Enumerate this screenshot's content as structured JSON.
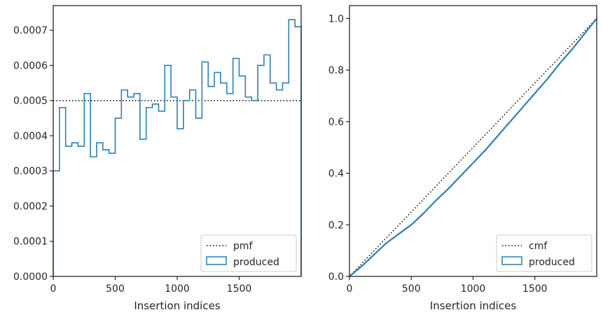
{
  "chart_data": [
    {
      "type": "histogram",
      "xlabel": "Insertion indices",
      "ylabel": "",
      "xlim": [
        0,
        2000
      ],
      "ylim": [
        0,
        0.00077
      ],
      "xticks": [
        0,
        500,
        1000,
        1500
      ],
      "xtick_labels": [
        "0",
        "500",
        "1000",
        "1500"
      ],
      "yticks": [
        0,
        0.0001,
        0.0002,
        0.0003,
        0.0004,
        0.0005,
        0.0006,
        0.0007
      ],
      "ytick_labels": [
        "0.0000",
        "0.0001",
        "0.0002",
        "0.0003",
        "0.0004",
        "0.0005",
        "0.0006",
        "0.0007"
      ],
      "legend_position": "lower-right",
      "reference": {
        "name": "pmf",
        "value": 0.0005,
        "style": "dotted",
        "color": "#000000"
      },
      "bins": {
        "name": "produced",
        "color": "#2e7fb0",
        "edges": [
          0,
          50,
          100,
          150,
          200,
          250,
          300,
          350,
          400,
          450,
          500,
          550,
          600,
          650,
          700,
          750,
          800,
          850,
          900,
          950,
          1000,
          1050,
          1100,
          1150,
          1200,
          1250,
          1300,
          1350,
          1400,
          1450,
          1500,
          1550,
          1600,
          1650,
          1700,
          1750,
          1800,
          1850,
          1900,
          1950,
          2000
        ],
        "values": [
          0.0003,
          0.00048,
          0.00037,
          0.00038,
          0.00037,
          0.00052,
          0.00034,
          0.00038,
          0.00036,
          0.00035,
          0.00045,
          0.00053,
          0.00051,
          0.00052,
          0.00039,
          0.00048,
          0.00049,
          0.00047,
          0.0006,
          0.00051,
          0.00042,
          0.0005,
          0.00053,
          0.00045,
          0.00061,
          0.00054,
          0.00058,
          0.00055,
          0.00052,
          0.00062,
          0.00057,
          0.00051,
          0.0005,
          0.0006,
          0.00063,
          0.00055,
          0.00053,
          0.00055,
          0.00073,
          0.00071
        ]
      }
    },
    {
      "type": "line",
      "xlabel": "Insertion indices",
      "ylabel": "",
      "xlim": [
        0,
        2000
      ],
      "ylim": [
        0,
        1.05
      ],
      "xticks": [
        0,
        500,
        1000,
        1500
      ],
      "xtick_labels": [
        "0",
        "500",
        "1000",
        "1500"
      ],
      "yticks": [
        0,
        0.2,
        0.4,
        0.6,
        0.8,
        1.0
      ],
      "ytick_labels": [
        "0.0",
        "0.2",
        "0.4",
        "0.6",
        "0.8",
        "1.0"
      ],
      "legend_position": "lower-right",
      "series": [
        {
          "name": "cmf",
          "style": "dotted",
          "color": "#000000",
          "x": [
            0,
            2000
          ],
          "y": [
            0,
            1.0
          ]
        },
        {
          "name": "produced",
          "style": "solid",
          "color": "#2e7fb0",
          "x": [
            0,
            100,
            200,
            300,
            400,
            500,
            600,
            700,
            800,
            900,
            1000,
            1100,
            1200,
            1300,
            1400,
            1500,
            1600,
            1700,
            1800,
            1900,
            2000
          ],
          "y": [
            0,
            0.04,
            0.085,
            0.13,
            0.165,
            0.2,
            0.245,
            0.295,
            0.34,
            0.39,
            0.44,
            0.49,
            0.545,
            0.6,
            0.655,
            0.71,
            0.765,
            0.825,
            0.88,
            0.94,
            1.0
          ]
        }
      ]
    }
  ]
}
